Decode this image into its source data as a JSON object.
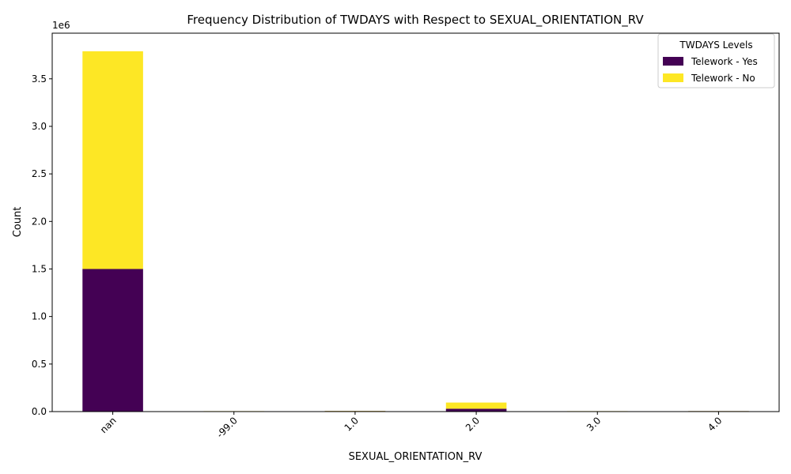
{
  "chart_data": {
    "type": "bar",
    "stacked": true,
    "title": "Frequency Distribution of TWDAYS with Respect to SEXUAL_ORIENTATION_RV",
    "xlabel": "SEXUAL_ORIENTATION_RV",
    "ylabel": "Count",
    "y_offset_label": "1e6",
    "categories": [
      "nan",
      "-99.0",
      "1.0",
      "2.0",
      "3.0",
      "4.0"
    ],
    "series": [
      {
        "name": "Telework - Yes",
        "color": "#440154",
        "values": [
          1500000,
          1000,
          6000,
          30000,
          4000,
          5000
        ]
      },
      {
        "name": "Telework - No",
        "color": "#fde725",
        "values": [
          2290000,
          4000,
          2000,
          65000,
          1000,
          1000
        ]
      }
    ],
    "ylim": [
      0,
      3980000
    ],
    "yticks": [
      0,
      500000,
      1000000,
      1500000,
      2000000,
      2500000,
      3000000,
      3500000
    ],
    "ytick_labels": [
      "0.0",
      "0.5",
      "1.0",
      "1.5",
      "2.0",
      "2.5",
      "3.0",
      "3.5"
    ],
    "legend": {
      "title": "TWDAYS Levels",
      "placement": "top-right"
    },
    "grid": false
  }
}
